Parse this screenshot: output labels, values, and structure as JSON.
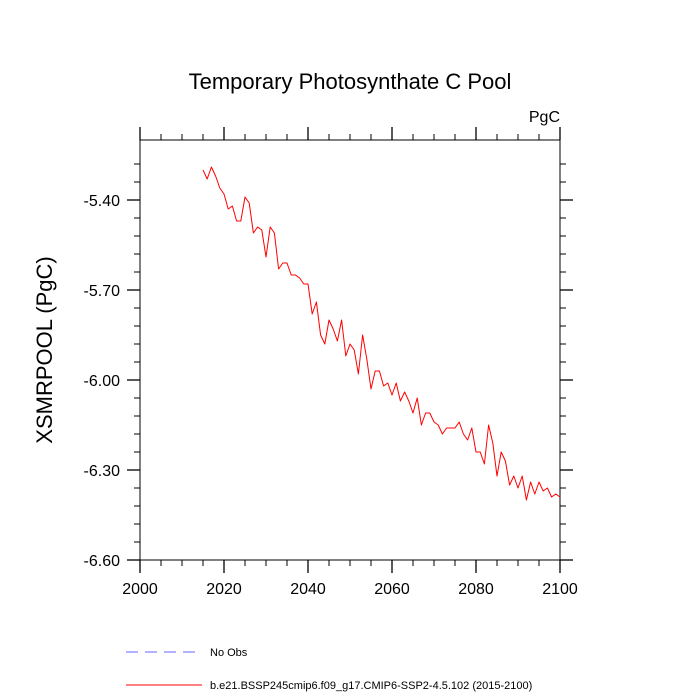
{
  "chart_data": {
    "type": "line",
    "title": "Temporary Photosynthate C Pool",
    "units_label": "PgC",
    "ylabel": "XSMRPOOL  (PgC)",
    "xlabel": "",
    "xlim": [
      2000,
      2100
    ],
    "ylim": [
      -6.6,
      -5.2
    ],
    "x_ticks": [
      2000,
      2020,
      2040,
      2060,
      2080,
      2100
    ],
    "x_tick_labels": [
      "2000",
      "2020",
      "2040",
      "2060",
      "2080",
      "2100"
    ],
    "y_ticks": [
      -6.6,
      -6.3,
      -6.0,
      -5.7,
      -5.4
    ],
    "y_tick_labels": [
      "-6.60",
      "-6.30",
      "-6.00",
      "-5.70",
      "-5.40"
    ],
    "y_minor_step": 0.06,
    "x_minor_step": 5,
    "grid": false,
    "legend_position": "bottom",
    "legend": [
      {
        "label": "No Obs",
        "style": "dashed",
        "color": "#6666ff"
      },
      {
        "label": "b.e21.BSSP245cmip6.f09_g17.CMIP6-SSP2-4.5.102 (2015-2100)",
        "style": "solid",
        "color": "#ff0000"
      }
    ],
    "series": [
      {
        "color": "#ff0000",
        "x": [
          2015,
          2016,
          2017,
          2018,
          2019,
          2020,
          2021,
          2022,
          2023,
          2024,
          2025,
          2026,
          2027,
          2028,
          2029,
          2030,
          2031,
          2032,
          2033,
          2034,
          2035,
          2036,
          2037,
          2038,
          2039,
          2040,
          2041,
          2042,
          2043,
          2044,
          2045,
          2046,
          2047,
          2048,
          2049,
          2050,
          2051,
          2052,
          2053,
          2054,
          2055,
          2056,
          2057,
          2058,
          2059,
          2060,
          2061,
          2062,
          2063,
          2064,
          2065,
          2066,
          2067,
          2068,
          2069,
          2070,
          2071,
          2072,
          2073,
          2074,
          2075,
          2076,
          2077,
          2078,
          2079,
          2080,
          2081,
          2082,
          2083,
          2084,
          2085,
          2086,
          2087,
          2088,
          2089,
          2090,
          2091,
          2092,
          2093,
          2094,
          2095,
          2096,
          2097,
          2098,
          2099,
          2100
        ],
        "values": [
          -5.3,
          -5.33,
          -5.29,
          -5.32,
          -5.36,
          -5.38,
          -5.43,
          -5.42,
          -5.47,
          -5.47,
          -5.39,
          -5.41,
          -5.51,
          -5.49,
          -5.5,
          -5.59,
          -5.49,
          -5.51,
          -5.63,
          -5.61,
          -5.61,
          -5.65,
          -5.65,
          -5.66,
          -5.68,
          -5.68,
          -5.78,
          -5.74,
          -5.85,
          -5.88,
          -5.8,
          -5.83,
          -5.87,
          -5.8,
          -5.92,
          -5.88,
          -5.9,
          -5.98,
          -5.85,
          -5.93,
          -6.03,
          -5.97,
          -5.97,
          -6.02,
          -6.01,
          -6.05,
          -6.01,
          -6.07,
          -6.04,
          -6.07,
          -6.11,
          -6.06,
          -6.15,
          -6.11,
          -6.11,
          -6.14,
          -6.15,
          -6.18,
          -6.16,
          -6.16,
          -6.16,
          -6.14,
          -6.18,
          -6.2,
          -6.16,
          -6.24,
          -6.24,
          -6.28,
          -6.15,
          -6.21,
          -6.32,
          -6.24,
          -6.27,
          -6.35,
          -6.32,
          -6.36,
          -6.32,
          -6.4,
          -6.34,
          -6.38,
          -6.34,
          -6.37,
          -6.36,
          -6.39,
          -6.38,
          -6.39
        ]
      }
    ]
  }
}
